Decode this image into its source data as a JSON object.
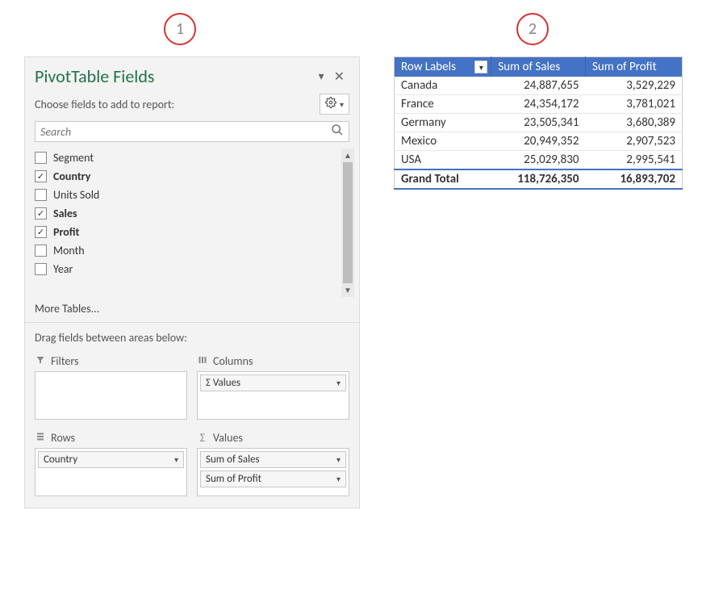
{
  "callouts": {
    "one": "1",
    "two": "2"
  },
  "panel": {
    "title": "PivotTable Fields",
    "subtitle": "Choose fields to add to report:",
    "search_placeholder": "Search",
    "more_tables": "More Tables...",
    "drag_label": "Drag fields between areas below:",
    "title_color": "#217346",
    "background": "#f3f3f3"
  },
  "fields": [
    {
      "label": "Segment",
      "checked": false
    },
    {
      "label": "Country",
      "checked": true
    },
    {
      "label": "Units Sold",
      "checked": false
    },
    {
      "label": " Sales",
      "checked": true
    },
    {
      "label": "Profit",
      "checked": true
    },
    {
      "label": "Month",
      "checked": false
    },
    {
      "label": "Year",
      "checked": false
    }
  ],
  "areas": {
    "filters": {
      "label": "Filters",
      "items": []
    },
    "columns": {
      "label": "Columns",
      "items": [
        "Σ Values"
      ]
    },
    "rows": {
      "label": "Rows",
      "items": [
        "Country"
      ]
    },
    "values": {
      "label": "Values",
      "items": [
        "Sum of  Sales",
        "Sum of Profit"
      ]
    }
  },
  "pivot": {
    "header_bg": "#4472c4",
    "header_fg": "#ffffff",
    "grand_border": "#4472c4",
    "columns": [
      "Row Labels",
      "Sum of  Sales",
      "Sum of Profit"
    ],
    "rows": [
      {
        "label": "Canada",
        "sales": "24,887,655",
        "profit": "3,529,229"
      },
      {
        "label": "France",
        "sales": "24,354,172",
        "profit": "3,781,021"
      },
      {
        "label": "Germany",
        "sales": "23,505,341",
        "profit": "3,680,389"
      },
      {
        "label": "Mexico",
        "sales": "20,949,352",
        "profit": "2,907,523"
      },
      {
        "label": "USA",
        "sales": "25,029,830",
        "profit": "2,995,541"
      }
    ],
    "grand": {
      "label": "Grand Total",
      "sales": "118,726,350",
      "profit": "16,893,702"
    }
  }
}
